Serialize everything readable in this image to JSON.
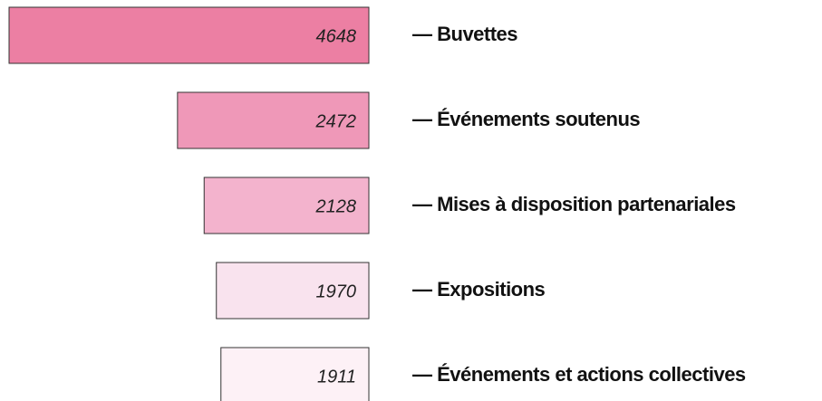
{
  "chart_data": {
    "type": "bar",
    "orientation": "horizontal",
    "categories": [
      "— Buvettes",
      "— Événements soutenus",
      "— Mises à disposition partenariales",
      "— Expositions",
      "— Événements et actions collectives"
    ],
    "values": [
      4648,
      2472,
      2128,
      1970,
      1911
    ],
    "colors": [
      "#ec7fa3",
      "#ef98b8",
      "#f3b3cd",
      "#f9e3ee",
      "#fdf1f6"
    ]
  }
}
